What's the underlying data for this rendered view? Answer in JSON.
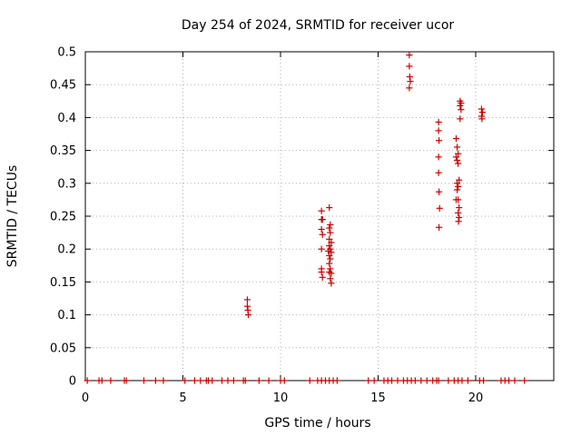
{
  "chart_data": {
    "type": "scatter",
    "title": "Day 254 of 2024, SRMTID for receiver ucor",
    "xlabel": "GPS time / hours",
    "ylabel": "SRMTID / TECUs",
    "xlim": [
      0,
      24
    ],
    "ylim": [
      0,
      0.5
    ],
    "grid": true,
    "marker": "+",
    "color": "#cc0000",
    "x_ticks": [
      0,
      5,
      10,
      15,
      20
    ],
    "x_tick_labels": [
      "0",
      "5",
      "10",
      "15",
      "20"
    ],
    "y_ticks": [
      0,
      0.05,
      0.1,
      0.15,
      0.2,
      0.25,
      0.3,
      0.35,
      0.4,
      0.45,
      0.5
    ],
    "y_tick_labels": [
      "0",
      "0.05",
      "0.1",
      "0.15",
      "0.2",
      "0.25",
      "0.3",
      "0.35",
      "0.4",
      "0.45",
      "0.5"
    ],
    "series": [
      {
        "name": "SRMTID",
        "points": [
          [
            8.3,
            0.123
          ],
          [
            8.3,
            0.113
          ],
          [
            8.33,
            0.107
          ],
          [
            8.35,
            0.1
          ],
          [
            12.1,
            0.258
          ],
          [
            12.1,
            0.245
          ],
          [
            12.15,
            0.245
          ],
          [
            12.1,
            0.23
          ],
          [
            12.15,
            0.222
          ],
          [
            12.1,
            0.2
          ],
          [
            12.1,
            0.17
          ],
          [
            12.1,
            0.165
          ],
          [
            12.15,
            0.157
          ],
          [
            12.5,
            0.263
          ],
          [
            12.55,
            0.237
          ],
          [
            12.5,
            0.232
          ],
          [
            12.55,
            0.225
          ],
          [
            12.5,
            0.215
          ],
          [
            12.6,
            0.21
          ],
          [
            12.5,
            0.205
          ],
          [
            12.55,
            0.2
          ],
          [
            12.45,
            0.197
          ],
          [
            12.6,
            0.195
          ],
          [
            12.5,
            0.19
          ],
          [
            12.55,
            0.185
          ],
          [
            12.5,
            0.178
          ],
          [
            12.55,
            0.17
          ],
          [
            12.5,
            0.165
          ],
          [
            12.6,
            0.163
          ],
          [
            12.55,
            0.155
          ],
          [
            12.6,
            0.148
          ],
          [
            16.6,
            0.495
          ],
          [
            16.6,
            0.478
          ],
          [
            16.62,
            0.462
          ],
          [
            16.65,
            0.455
          ],
          [
            16.6,
            0.445
          ],
          [
            18.1,
            0.393
          ],
          [
            18.1,
            0.38
          ],
          [
            18.12,
            0.365
          ],
          [
            18.1,
            0.34
          ],
          [
            18.1,
            0.316
          ],
          [
            18.12,
            0.287
          ],
          [
            18.15,
            0.262
          ],
          [
            18.12,
            0.233
          ],
          [
            19.0,
            0.368
          ],
          [
            19.05,
            0.355
          ],
          [
            19.1,
            0.345
          ],
          [
            19.0,
            0.34
          ],
          [
            19.05,
            0.335
          ],
          [
            19.1,
            0.33
          ],
          [
            19.05,
            0.3
          ],
          [
            19.15,
            0.305
          ],
          [
            19.1,
            0.295
          ],
          [
            19.05,
            0.29
          ],
          [
            19.0,
            0.275
          ],
          [
            19.1,
            0.275
          ],
          [
            19.15,
            0.263
          ],
          [
            19.1,
            0.255
          ],
          [
            19.15,
            0.248
          ],
          [
            19.12,
            0.242
          ],
          [
            19.2,
            0.425
          ],
          [
            19.25,
            0.422
          ],
          [
            19.2,
            0.418
          ],
          [
            19.25,
            0.412
          ],
          [
            19.2,
            0.398
          ],
          [
            20.3,
            0.413
          ],
          [
            20.35,
            0.408
          ],
          [
            20.3,
            0.402
          ],
          [
            20.32,
            0.398
          ],
          [
            0.1,
            0
          ],
          [
            0.7,
            0
          ],
          [
            0.85,
            0
          ],
          [
            1.3,
            0
          ],
          [
            2.0,
            0
          ],
          [
            2.1,
            0
          ],
          [
            3.0,
            0
          ],
          [
            3.6,
            0
          ],
          [
            4.0,
            0
          ],
          [
            5.1,
            0
          ],
          [
            5.6,
            0
          ],
          [
            5.9,
            0
          ],
          [
            6.2,
            0
          ],
          [
            6.3,
            0
          ],
          [
            6.5,
            0
          ],
          [
            7.0,
            0
          ],
          [
            7.3,
            0
          ],
          [
            7.6,
            0
          ],
          [
            8.1,
            0
          ],
          [
            8.2,
            0
          ],
          [
            8.9,
            0
          ],
          [
            9.4,
            0
          ],
          [
            10.0,
            0
          ],
          [
            10.2,
            0
          ],
          [
            11.5,
            0
          ],
          [
            11.9,
            0
          ],
          [
            12.1,
            0
          ],
          [
            12.3,
            0
          ],
          [
            12.5,
            0
          ],
          [
            12.7,
            0
          ],
          [
            12.9,
            0
          ],
          [
            14.5,
            0
          ],
          [
            14.8,
            0
          ],
          [
            15.3,
            0
          ],
          [
            15.5,
            0
          ],
          [
            15.7,
            0
          ],
          [
            16.0,
            0
          ],
          [
            16.3,
            0
          ],
          [
            16.5,
            0
          ],
          [
            16.7,
            0
          ],
          [
            16.9,
            0
          ],
          [
            17.2,
            0
          ],
          [
            17.5,
            0
          ],
          [
            17.8,
            0
          ],
          [
            18.0,
            0
          ],
          [
            18.1,
            0
          ],
          [
            18.6,
            0
          ],
          [
            18.9,
            0
          ],
          [
            19.1,
            0
          ],
          [
            19.3,
            0
          ],
          [
            19.6,
            0
          ],
          [
            20.2,
            0
          ],
          [
            20.4,
            0
          ],
          [
            21.3,
            0
          ],
          [
            21.5,
            0
          ],
          [
            21.7,
            0
          ],
          [
            22.0,
            0
          ],
          [
            22.5,
            0
          ]
        ]
      }
    ]
  }
}
